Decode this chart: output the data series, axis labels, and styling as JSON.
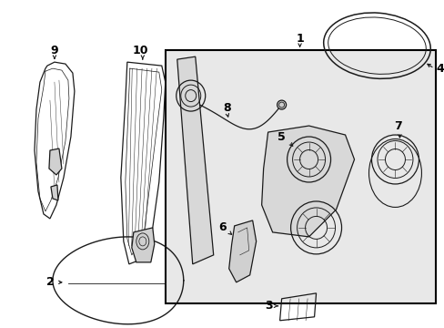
{
  "bg_color": "#ffffff",
  "detail_color": "#1a1a1a",
  "box_color": "#e8e8e8",
  "fig_w": 4.89,
  "fig_h": 3.6,
  "dpi": 100
}
